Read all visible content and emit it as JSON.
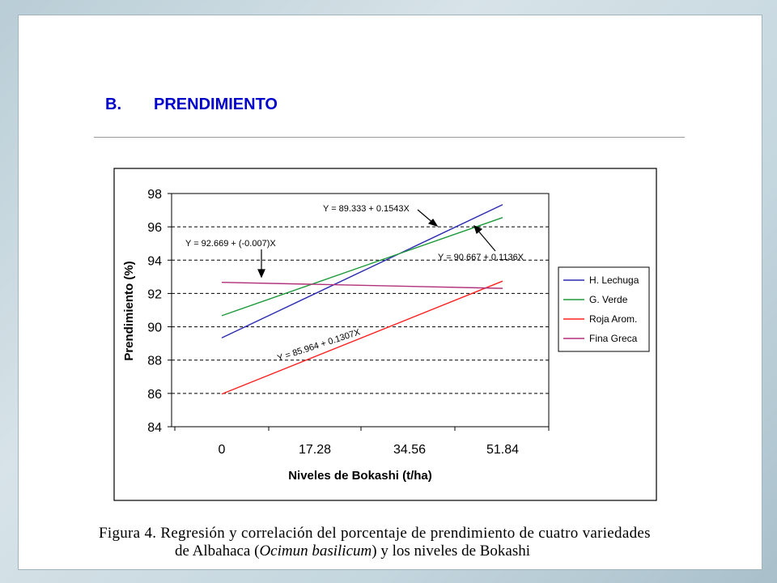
{
  "slide": {
    "heading_letter": "B.",
    "heading_text": "PRENDIMIENTO"
  },
  "caption": {
    "line1": "Figura 4.  Regresión  y correlación  del porcentaje  de prendimiento  de  cuatro  variedades",
    "line2_pre": "de Albahaca (",
    "line2_italic": "Ocimun basilicum",
    "line2_post": ") y los niveles de Bokashi"
  },
  "chart_data": {
    "type": "line",
    "title": "",
    "xlabel": "Niveles de Bokashi (t/ha)",
    "ylabel": "Prendimiento (%)",
    "categories": [
      "0",
      "17.28",
      "34.56",
      "51.84"
    ],
    "x_range": [
      0,
      51.84
    ],
    "ylim": [
      84,
      98
    ],
    "yticks": [
      84,
      86,
      88,
      90,
      92,
      94,
      96,
      98
    ],
    "grid": "horizontal dashed",
    "legend_position": "right",
    "series": [
      {
        "name": "H. Lechuga",
        "color": "#2b2bb0",
        "x": [
          0,
          51.84
        ],
        "values": [
          89.333,
          97.332
        ]
      },
      {
        "name": "G. Verde",
        "color": "#1e9a3a",
        "x": [
          0,
          51.84
        ],
        "values": [
          90.667,
          96.556
        ]
      },
      {
        "name": "Roja Arom.",
        "color": "#ff2020",
        "x": [
          0,
          51.84
        ],
        "values": [
          85.964,
          92.74
        ]
      },
      {
        "name": "Fina Greca",
        "color": "#b0307a",
        "x": [
          0,
          51.84
        ],
        "values": [
          92.669,
          92.306
        ]
      }
    ],
    "annotations": [
      {
        "text": "Y = 89.333 + 0.1543X",
        "series": "H. Lechuga"
      },
      {
        "text": "Y = 90.667 + 0.1136X",
        "series": "G. Verde"
      },
      {
        "text": "Y = 92.669 + (-0.007)X",
        "series": "Fina Greca"
      },
      {
        "text": "Y = 85.964 + 0.1307X",
        "series": "Roja Arom."
      }
    ]
  }
}
